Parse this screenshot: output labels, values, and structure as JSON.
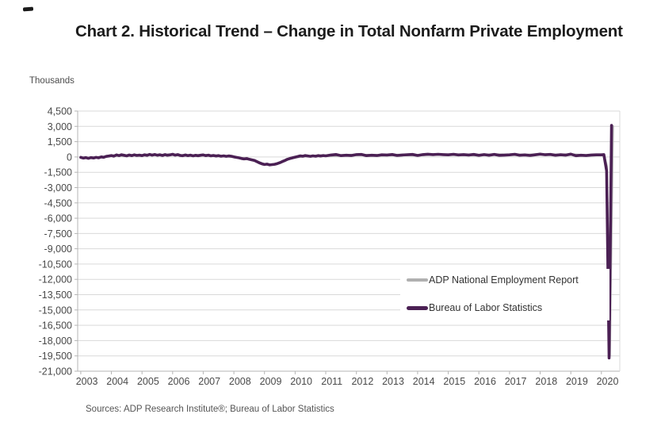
{
  "page": {
    "title": "Chart 2. Historical Trend – Change in Total Nonfarm Private Employment",
    "y_axis_unit_label": "Thousands",
    "source_note": "Sources: ADP Research Institute®; Bureau of Labor Statistics"
  },
  "colors": {
    "adp_line": "#b0b0b0",
    "bls_line": "#4b2054",
    "gridline": "#d9d9d9",
    "axis": "#b5b5b5",
    "tick_label": "#4a4a4a"
  },
  "legend": {
    "items": [
      {
        "label": "ADP National Employment Report",
        "color": "#b0b0b0"
      },
      {
        "label": "Bureau of Labor Statistics",
        "color": "#4b2054"
      }
    ],
    "position": "center-right",
    "background": "#ffffff"
  },
  "chart_data": {
    "type": "line",
    "title": "Chart 2. Historical Trend – Change in Total Nonfarm Private Employment",
    "xlabel": "",
    "ylabel": "Thousands",
    "ylim": [
      -21000,
      4500
    ],
    "ytick_step": 1500,
    "ytick_labels": [
      "4,500",
      "3,000",
      "1,500",
      "0",
      "-1,500",
      "-3,000",
      "-4,500",
      "-6,000",
      "-7,500",
      "-9,000",
      "-10,500",
      "-12,000",
      "-13,500",
      "-15,000",
      "-16,500",
      "-18,000",
      "-19,500",
      "-21,000"
    ],
    "xtick_labels": [
      "2003",
      "2004",
      "2005",
      "2006",
      "2007",
      "2008",
      "2009",
      "2010",
      "2011",
      "2012",
      "2013",
      "2014",
      "2015",
      "2016",
      "2017",
      "2018",
      "2019",
      "2020"
    ],
    "x_range": [
      2002.9,
      2020.6
    ],
    "grid": true,
    "series": [
      {
        "name": "ADP National Employment Report",
        "color": "#b0b0b0",
        "width": 3,
        "points": [
          [
            2003.0,
            -60
          ],
          [
            2003.25,
            -110
          ],
          [
            2003.5,
            -50
          ],
          [
            2003.75,
            -10
          ],
          [
            2004.0,
            150
          ],
          [
            2004.25,
            140
          ],
          [
            2004.5,
            120
          ],
          [
            2004.75,
            190
          ],
          [
            2005.0,
            150
          ],
          [
            2005.25,
            230
          ],
          [
            2005.5,
            180
          ],
          [
            2005.75,
            210
          ],
          [
            2006.0,
            240
          ],
          [
            2006.25,
            160
          ],
          [
            2006.5,
            140
          ],
          [
            2006.75,
            150
          ],
          [
            2007.0,
            190
          ],
          [
            2007.25,
            120
          ],
          [
            2007.5,
            110
          ],
          [
            2007.75,
            80
          ],
          [
            2008.0,
            0
          ],
          [
            2008.25,
            -140
          ],
          [
            2008.5,
            -220
          ],
          [
            2008.75,
            -440
          ],
          [
            2009.0,
            -720
          ],
          [
            2009.17,
            -760
          ],
          [
            2009.33,
            -730
          ],
          [
            2009.5,
            -580
          ],
          [
            2009.75,
            -250
          ],
          [
            2010.0,
            -40
          ],
          [
            2010.25,
            60
          ],
          [
            2010.5,
            80
          ],
          [
            2010.75,
            120
          ],
          [
            2011.0,
            130
          ],
          [
            2011.5,
            150
          ],
          [
            2012.0,
            220
          ],
          [
            2012.5,
            160
          ],
          [
            2013.0,
            180
          ],
          [
            2013.5,
            200
          ],
          [
            2014.0,
            170
          ],
          [
            2014.5,
            240
          ],
          [
            2015.0,
            220
          ],
          [
            2015.5,
            210
          ],
          [
            2016.0,
            170
          ],
          [
            2016.5,
            230
          ],
          [
            2017.0,
            220
          ],
          [
            2017.5,
            190
          ],
          [
            2018.0,
            260
          ],
          [
            2018.5,
            200
          ],
          [
            2019.0,
            250
          ],
          [
            2019.5,
            150
          ],
          [
            2019.75,
            180
          ],
          [
            2020.0,
            190
          ],
          [
            2020.08,
            210
          ],
          [
            2020.17,
            -900
          ],
          [
            2020.27,
            -19500
          ],
          [
            2020.37,
            3000
          ]
        ]
      },
      {
        "name": "Bureau of Labor Statistics",
        "color": "#4b2054",
        "width": 3.6,
        "points": [
          [
            2003.0,
            -40
          ],
          [
            2003.08,
            -110
          ],
          [
            2003.17,
            -60
          ],
          [
            2003.25,
            -130
          ],
          [
            2003.33,
            -60
          ],
          [
            2003.42,
            -100
          ],
          [
            2003.5,
            -40
          ],
          [
            2003.58,
            -90
          ],
          [
            2003.67,
            10
          ],
          [
            2003.75,
            -30
          ],
          [
            2003.83,
            50
          ],
          [
            2003.92,
            90
          ],
          [
            2004.0,
            140
          ],
          [
            2004.08,
            80
          ],
          [
            2004.17,
            200
          ],
          [
            2004.25,
            130
          ],
          [
            2004.33,
            220
          ],
          [
            2004.42,
            160
          ],
          [
            2004.5,
            110
          ],
          [
            2004.58,
            190
          ],
          [
            2004.67,
            130
          ],
          [
            2004.75,
            210
          ],
          [
            2004.83,
            150
          ],
          [
            2004.92,
            180
          ],
          [
            2005.0,
            130
          ],
          [
            2005.08,
            210
          ],
          [
            2005.17,
            160
          ],
          [
            2005.25,
            250
          ],
          [
            2005.33,
            180
          ],
          [
            2005.42,
            240
          ],
          [
            2005.5,
            170
          ],
          [
            2005.58,
            220
          ],
          [
            2005.67,
            150
          ],
          [
            2005.75,
            230
          ],
          [
            2005.83,
            170
          ],
          [
            2005.92,
            210
          ],
          [
            2006.0,
            260
          ],
          [
            2006.08,
            180
          ],
          [
            2006.17,
            230
          ],
          [
            2006.25,
            150
          ],
          [
            2006.33,
            120
          ],
          [
            2006.42,
            190
          ],
          [
            2006.5,
            130
          ],
          [
            2006.58,
            180
          ],
          [
            2006.67,
            110
          ],
          [
            2006.75,
            160
          ],
          [
            2006.83,
            120
          ],
          [
            2006.92,
            170
          ],
          [
            2007.0,
            200
          ],
          [
            2007.08,
            130
          ],
          [
            2007.17,
            180
          ],
          [
            2007.25,
            110
          ],
          [
            2007.33,
            150
          ],
          [
            2007.42,
            90
          ],
          [
            2007.5,
            130
          ],
          [
            2007.58,
            70
          ],
          [
            2007.67,
            110
          ],
          [
            2007.75,
            60
          ],
          [
            2007.83,
            100
          ],
          [
            2007.92,
            70
          ],
          [
            2008.0,
            10
          ],
          [
            2008.08,
            -40
          ],
          [
            2008.17,
            -90
          ],
          [
            2008.25,
            -150
          ],
          [
            2008.33,
            -190
          ],
          [
            2008.42,
            -160
          ],
          [
            2008.5,
            -230
          ],
          [
            2008.58,
            -280
          ],
          [
            2008.67,
            -340
          ],
          [
            2008.75,
            -460
          ],
          [
            2008.83,
            -580
          ],
          [
            2008.92,
            -680
          ],
          [
            2009.0,
            -740
          ],
          [
            2009.08,
            -700
          ],
          [
            2009.17,
            -780
          ],
          [
            2009.25,
            -750
          ],
          [
            2009.33,
            -720
          ],
          [
            2009.42,
            -650
          ],
          [
            2009.5,
            -560
          ],
          [
            2009.58,
            -450
          ],
          [
            2009.67,
            -340
          ],
          [
            2009.75,
            -230
          ],
          [
            2009.83,
            -150
          ],
          [
            2009.92,
            -80
          ],
          [
            2010.0,
            -20
          ],
          [
            2010.08,
            40
          ],
          [
            2010.17,
            110
          ],
          [
            2010.25,
            70
          ],
          [
            2010.33,
            140
          ],
          [
            2010.42,
            90
          ],
          [
            2010.5,
            60
          ],
          [
            2010.58,
            110
          ],
          [
            2010.67,
            70
          ],
          [
            2010.75,
            130
          ],
          [
            2010.83,
            90
          ],
          [
            2010.92,
            140
          ],
          [
            2011.0,
            110
          ],
          [
            2011.17,
            190
          ],
          [
            2011.33,
            240
          ],
          [
            2011.5,
            130
          ],
          [
            2011.67,
            170
          ],
          [
            2011.83,
            140
          ],
          [
            2012.0,
            230
          ],
          [
            2012.17,
            250
          ],
          [
            2012.33,
            130
          ],
          [
            2012.5,
            170
          ],
          [
            2012.67,
            140
          ],
          [
            2012.83,
            210
          ],
          [
            2013.0,
            190
          ],
          [
            2013.17,
            240
          ],
          [
            2013.33,
            150
          ],
          [
            2013.5,
            190
          ],
          [
            2013.67,
            220
          ],
          [
            2013.83,
            250
          ],
          [
            2014.0,
            150
          ],
          [
            2014.17,
            230
          ],
          [
            2014.33,
            270
          ],
          [
            2014.5,
            230
          ],
          [
            2014.67,
            260
          ],
          [
            2014.83,
            230
          ],
          [
            2015.0,
            210
          ],
          [
            2015.17,
            260
          ],
          [
            2015.33,
            200
          ],
          [
            2015.5,
            230
          ],
          [
            2015.67,
            190
          ],
          [
            2015.83,
            250
          ],
          [
            2016.0,
            160
          ],
          [
            2016.17,
            230
          ],
          [
            2016.33,
            170
          ],
          [
            2016.5,
            250
          ],
          [
            2016.67,
            160
          ],
          [
            2016.83,
            180
          ],
          [
            2017.0,
            210
          ],
          [
            2017.17,
            260
          ],
          [
            2017.33,
            170
          ],
          [
            2017.5,
            200
          ],
          [
            2017.67,
            150
          ],
          [
            2017.83,
            210
          ],
          [
            2018.0,
            280
          ],
          [
            2018.17,
            220
          ],
          [
            2018.33,
            250
          ],
          [
            2018.5,
            170
          ],
          [
            2018.67,
            220
          ],
          [
            2018.83,
            180
          ],
          [
            2019.0,
            280
          ],
          [
            2019.17,
            120
          ],
          [
            2019.33,
            170
          ],
          [
            2019.5,
            140
          ],
          [
            2019.67,
            190
          ],
          [
            2019.83,
            210
          ],
          [
            2020.0,
            210
          ],
          [
            2020.08,
            230
          ],
          [
            2020.17,
            -1360
          ],
          [
            2020.25,
            -19700
          ],
          [
            2020.33,
            3100
          ]
        ]
      }
    ]
  }
}
